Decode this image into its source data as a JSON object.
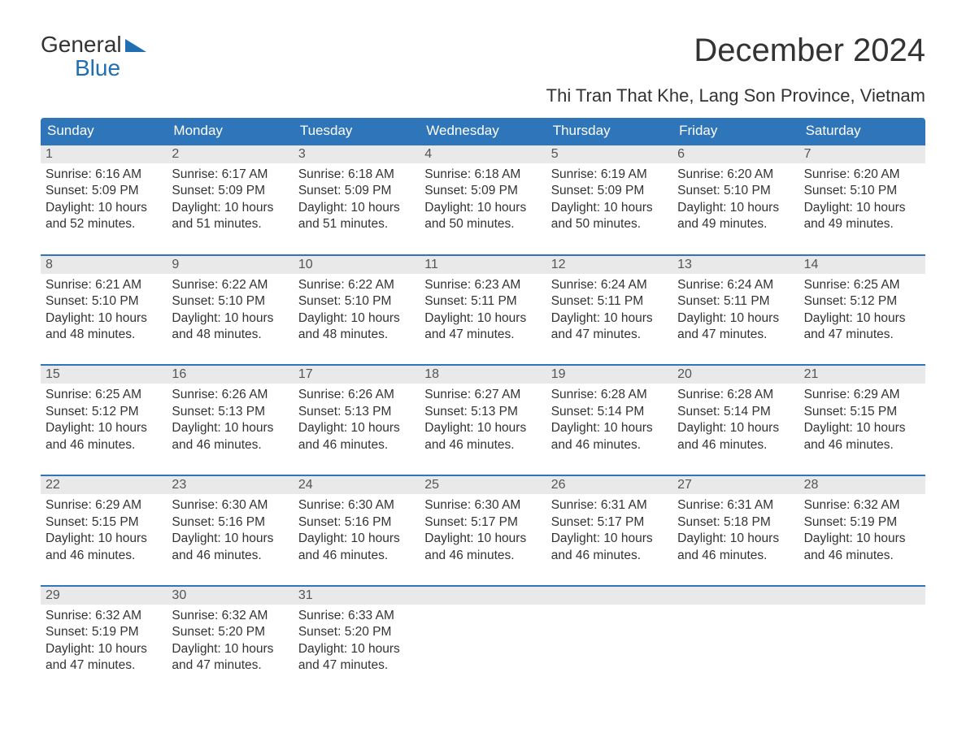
{
  "logo": {
    "line1": "General",
    "line2": "Blue"
  },
  "title": "December 2024",
  "subtitle": "Thi Tran That Khe, Lang Son Province, Vietnam",
  "colors": {
    "header_bg": "#2f75b9",
    "header_text": "#ffffff",
    "daynum_bg": "#e9e9e9",
    "week_border": "#2f75b9",
    "body_text": "#333333",
    "logo_blue": "#1f6fb2",
    "page_bg": "#ffffff"
  },
  "day_labels": [
    "Sunday",
    "Monday",
    "Tuesday",
    "Wednesday",
    "Thursday",
    "Friday",
    "Saturday"
  ],
  "field_labels": {
    "sunrise": "Sunrise",
    "sunset": "Sunset",
    "daylight": "Daylight"
  },
  "weeks": [
    [
      {
        "n": "1",
        "sr": "6:16 AM",
        "ss": "5:09 PM",
        "dl": "10 hours and 52 minutes."
      },
      {
        "n": "2",
        "sr": "6:17 AM",
        "ss": "5:09 PM",
        "dl": "10 hours and 51 minutes."
      },
      {
        "n": "3",
        "sr": "6:18 AM",
        "ss": "5:09 PM",
        "dl": "10 hours and 51 minutes."
      },
      {
        "n": "4",
        "sr": "6:18 AM",
        "ss": "5:09 PM",
        "dl": "10 hours and 50 minutes."
      },
      {
        "n": "5",
        "sr": "6:19 AM",
        "ss": "5:09 PM",
        "dl": "10 hours and 50 minutes."
      },
      {
        "n": "6",
        "sr": "6:20 AM",
        "ss": "5:10 PM",
        "dl": "10 hours and 49 minutes."
      },
      {
        "n": "7",
        "sr": "6:20 AM",
        "ss": "5:10 PM",
        "dl": "10 hours and 49 minutes."
      }
    ],
    [
      {
        "n": "8",
        "sr": "6:21 AM",
        "ss": "5:10 PM",
        "dl": "10 hours and 48 minutes."
      },
      {
        "n": "9",
        "sr": "6:22 AM",
        "ss": "5:10 PM",
        "dl": "10 hours and 48 minutes."
      },
      {
        "n": "10",
        "sr": "6:22 AM",
        "ss": "5:10 PM",
        "dl": "10 hours and 48 minutes."
      },
      {
        "n": "11",
        "sr": "6:23 AM",
        "ss": "5:11 PM",
        "dl": "10 hours and 47 minutes."
      },
      {
        "n": "12",
        "sr": "6:24 AM",
        "ss": "5:11 PM",
        "dl": "10 hours and 47 minutes."
      },
      {
        "n": "13",
        "sr": "6:24 AM",
        "ss": "5:11 PM",
        "dl": "10 hours and 47 minutes."
      },
      {
        "n": "14",
        "sr": "6:25 AM",
        "ss": "5:12 PM",
        "dl": "10 hours and 47 minutes."
      }
    ],
    [
      {
        "n": "15",
        "sr": "6:25 AM",
        "ss": "5:12 PM",
        "dl": "10 hours and 46 minutes."
      },
      {
        "n": "16",
        "sr": "6:26 AM",
        "ss": "5:13 PM",
        "dl": "10 hours and 46 minutes."
      },
      {
        "n": "17",
        "sr": "6:26 AM",
        "ss": "5:13 PM",
        "dl": "10 hours and 46 minutes."
      },
      {
        "n": "18",
        "sr": "6:27 AM",
        "ss": "5:13 PM",
        "dl": "10 hours and 46 minutes."
      },
      {
        "n": "19",
        "sr": "6:28 AM",
        "ss": "5:14 PM",
        "dl": "10 hours and 46 minutes."
      },
      {
        "n": "20",
        "sr": "6:28 AM",
        "ss": "5:14 PM",
        "dl": "10 hours and 46 minutes."
      },
      {
        "n": "21",
        "sr": "6:29 AM",
        "ss": "5:15 PM",
        "dl": "10 hours and 46 minutes."
      }
    ],
    [
      {
        "n": "22",
        "sr": "6:29 AM",
        "ss": "5:15 PM",
        "dl": "10 hours and 46 minutes."
      },
      {
        "n": "23",
        "sr": "6:30 AM",
        "ss": "5:16 PM",
        "dl": "10 hours and 46 minutes."
      },
      {
        "n": "24",
        "sr": "6:30 AM",
        "ss": "5:16 PM",
        "dl": "10 hours and 46 minutes."
      },
      {
        "n": "25",
        "sr": "6:30 AM",
        "ss": "5:17 PM",
        "dl": "10 hours and 46 minutes."
      },
      {
        "n": "26",
        "sr": "6:31 AM",
        "ss": "5:17 PM",
        "dl": "10 hours and 46 minutes."
      },
      {
        "n": "27",
        "sr": "6:31 AM",
        "ss": "5:18 PM",
        "dl": "10 hours and 46 minutes."
      },
      {
        "n": "28",
        "sr": "6:32 AM",
        "ss": "5:19 PM",
        "dl": "10 hours and 46 minutes."
      }
    ],
    [
      {
        "n": "29",
        "sr": "6:32 AM",
        "ss": "5:19 PM",
        "dl": "10 hours and 47 minutes."
      },
      {
        "n": "30",
        "sr": "6:32 AM",
        "ss": "5:20 PM",
        "dl": "10 hours and 47 minutes."
      },
      {
        "n": "31",
        "sr": "6:33 AM",
        "ss": "5:20 PM",
        "dl": "10 hours and 47 minutes."
      },
      null,
      null,
      null,
      null
    ]
  ]
}
